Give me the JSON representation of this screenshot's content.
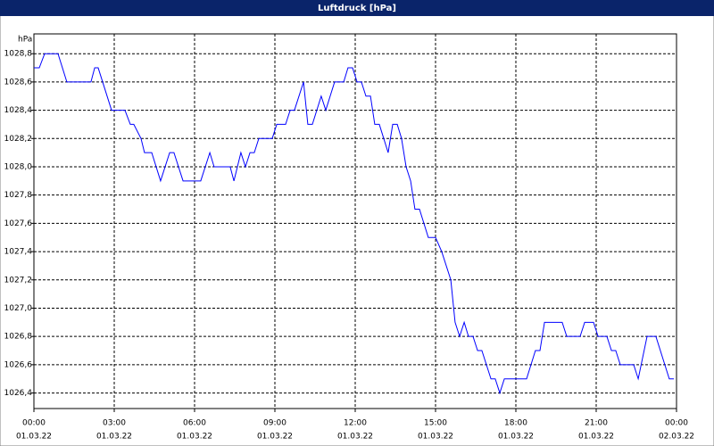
{
  "chart_data": {
    "type": "line",
    "title": "Luftdruck [hPa]",
    "y_label": "hPa",
    "x": [
      0,
      0.2,
      0.4,
      0.9,
      1.23,
      2.13,
      2.27,
      2.4,
      2.9,
      3.4,
      3.6,
      3.73,
      4.0,
      4.13,
      4.4,
      4.73,
      5.07,
      5.23,
      5.57,
      6.23,
      6.57,
      6.73,
      7.33,
      7.47,
      7.73,
      7.9,
      8.07,
      8.23,
      8.4,
      8.9,
      9.07,
      9.4,
      9.57,
      9.73,
      10.07,
      10.23,
      10.4,
      10.73,
      10.9,
      11.23,
      11.57,
      11.73,
      11.9,
      12.07,
      12.23,
      12.4,
      12.57,
      12.73,
      12.9,
      13.23,
      13.4,
      13.57,
      13.73,
      13.9,
      14.07,
      14.23,
      14.4,
      14.73,
      15.0,
      15.23,
      15.57,
      15.73,
      15.9,
      16.07,
      16.23,
      16.4,
      16.57,
      16.73,
      17.07,
      17.23,
      17.4,
      17.57,
      18.4,
      18.73,
      18.9,
      19.07,
      19.73,
      19.9,
      20.4,
      20.57,
      20.9,
      21.07,
      21.4,
      21.57,
      21.73,
      21.9,
      22.4,
      22.57,
      22.9,
      23.23,
      23.73,
      23.9
    ],
    "series": [
      {
        "color": "#0000ff",
        "values": [
          1028.7,
          1028.7,
          1028.8,
          1028.8,
          1028.6,
          1028.6,
          1028.7,
          1028.7,
          1028.4,
          1028.4,
          1028.3,
          1028.3,
          1028.2,
          1028.1,
          1028.1,
          1027.9,
          1028.1,
          1028.1,
          1027.9,
          1027.9,
          1028.1,
          1028.0,
          1028.0,
          1027.9,
          1028.1,
          1028.0,
          1028.1,
          1028.1,
          1028.2,
          1028.2,
          1028.3,
          1028.3,
          1028.4,
          1028.4,
          1028.6,
          1028.3,
          1028.3,
          1028.5,
          1028.4,
          1028.6,
          1028.6,
          1028.7,
          1028.7,
          1028.6,
          1028.6,
          1028.5,
          1028.5,
          1028.3,
          1028.3,
          1028.1,
          1028.3,
          1028.3,
          1028.2,
          1028.0,
          1027.9,
          1027.7,
          1027.7,
          1027.5,
          1027.5,
          1027.4,
          1027.2,
          1026.9,
          1026.8,
          1026.9,
          1026.8,
          1026.8,
          1026.7,
          1026.7,
          1026.5,
          1026.5,
          1026.4,
          1026.5,
          1026.5,
          1026.7,
          1026.7,
          1026.9,
          1026.9,
          1026.8,
          1026.8,
          1026.9,
          1026.9,
          1026.8,
          1026.8,
          1026.7,
          1026.7,
          1026.6,
          1026.6,
          1026.5,
          1026.8,
          1026.8,
          1026.5,
          1026.5
        ]
      }
    ],
    "xlim": [
      0,
      24
    ],
    "xticks": [
      {
        "value": 0,
        "label": "00:00"
      },
      {
        "value": 3,
        "label": "03:00"
      },
      {
        "value": 6,
        "label": "06:00"
      },
      {
        "value": 9,
        "label": "09:00"
      },
      {
        "value": 12,
        "label": "12:00"
      },
      {
        "value": 15,
        "label": "15:00"
      },
      {
        "value": 18,
        "label": "18:00"
      },
      {
        "value": 21,
        "label": "21:00"
      },
      {
        "value": 24,
        "label": "00:00"
      }
    ],
    "xtick_dates": [
      "01.03.22",
      "01.03.22",
      "01.03.22",
      "01.03.22",
      "01.03.22",
      "01.03.22",
      "01.03.22",
      "01.03.22",
      "02.03.22"
    ],
    "ylim": [
      1026.29,
      1028.94
    ],
    "yticks": [
      {
        "value": 1026.4,
        "label": "1026,4"
      },
      {
        "value": 1026.6,
        "label": "1026,6"
      },
      {
        "value": 1026.8,
        "label": "1026,8"
      },
      {
        "value": 1027.0,
        "label": "1027,0"
      },
      {
        "value": 1027.2,
        "label": "1027,2"
      },
      {
        "value": 1027.4,
        "label": "1027,4"
      },
      {
        "value": 1027.6,
        "label": "1027,6"
      },
      {
        "value": 1027.8,
        "label": "1027,8"
      },
      {
        "value": 1028.0,
        "label": "1028,0"
      },
      {
        "value": 1028.2,
        "label": "1028,2"
      },
      {
        "value": 1028.4,
        "label": "1028,4"
      },
      {
        "value": 1028.6,
        "label": "1028,6"
      },
      {
        "value": 1028.8,
        "label": "1028,8"
      }
    ],
    "grid": true
  }
}
